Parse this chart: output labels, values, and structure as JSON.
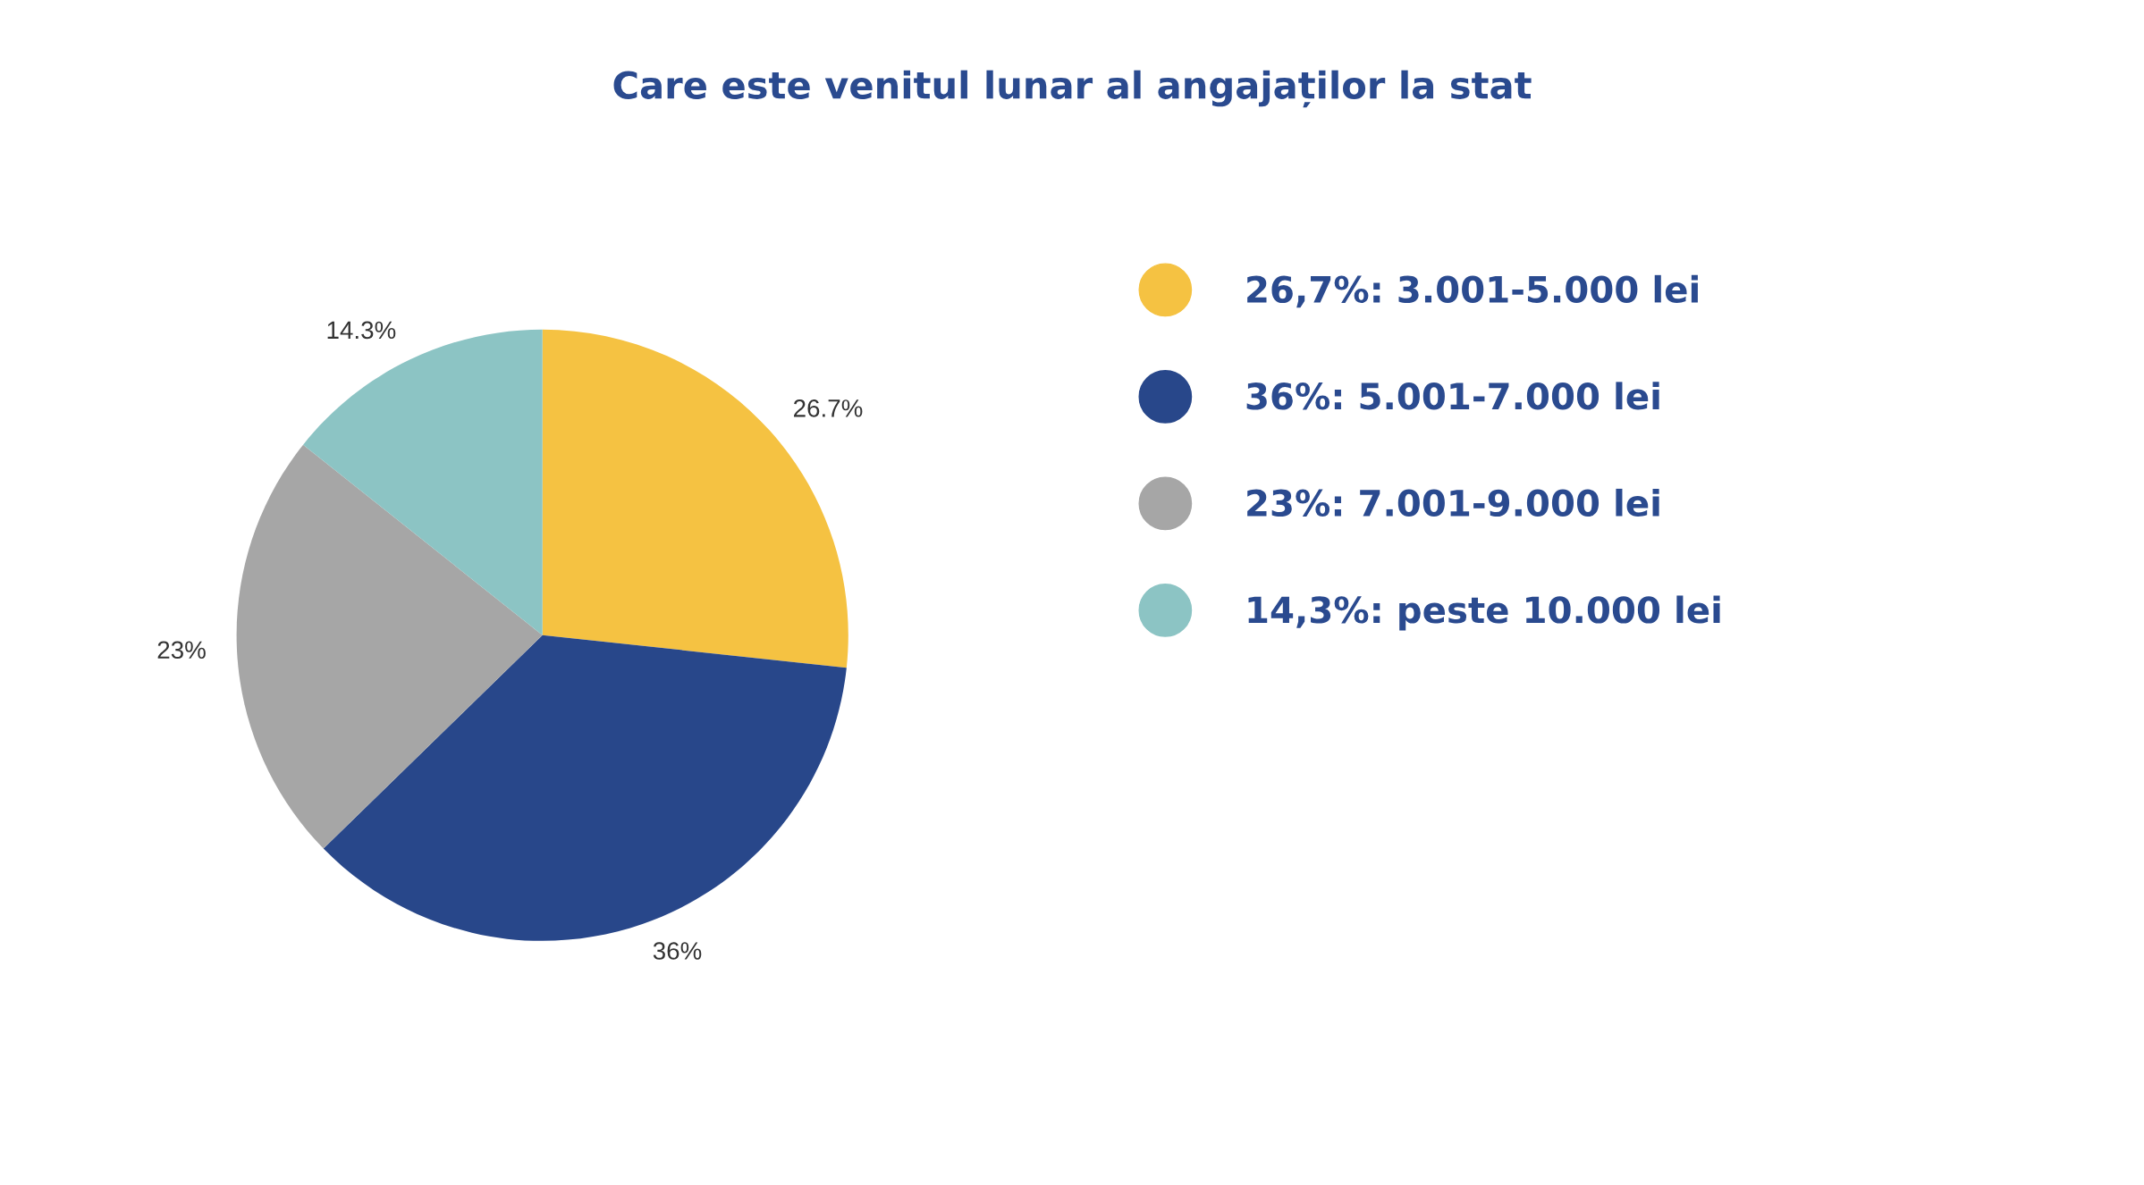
{
  "chart_data": {
    "type": "pie",
    "title": "Care este venitul lunar al angajaților la stat",
    "categories": [
      "26,7%: 3.001-5.000 lei",
      "36%: 5.001-7.000 lei",
      "23%: 7.001-9.000 lei",
      "14,3%: peste 10.000 lei"
    ],
    "values": [
      26.7,
      36,
      23,
      14.3
    ],
    "value_labels": [
      "26.7%",
      "36%",
      "23%",
      "14.3%"
    ],
    "colors": [
      "#f5c242",
      "#28478a",
      "#a6a6a6",
      "#8cc4c4"
    ],
    "legend": "right"
  }
}
